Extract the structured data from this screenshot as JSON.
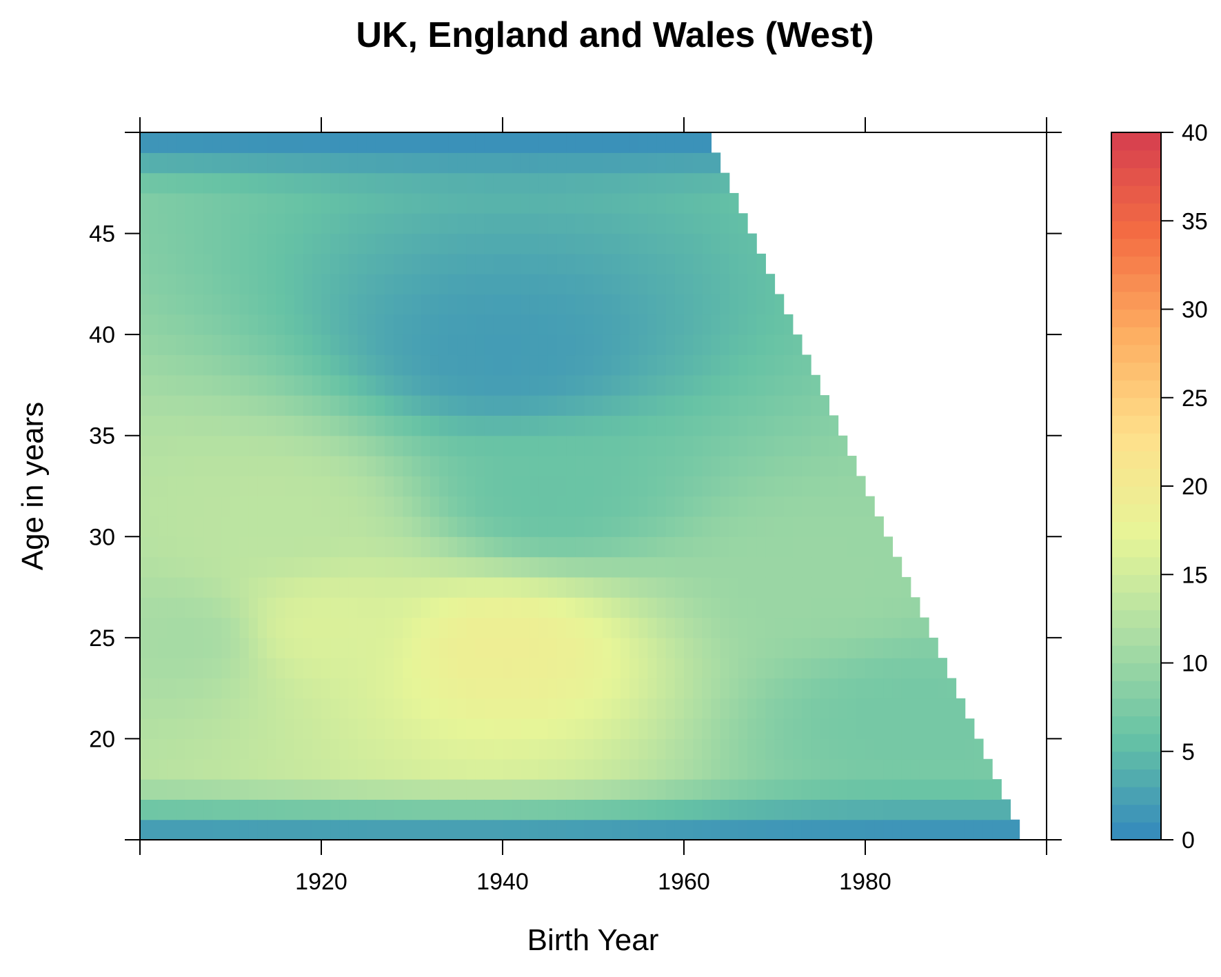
{
  "chart_data": {
    "type": "heatmap",
    "title": "UK, England and Wales (West)",
    "xlabel": "Birth Year",
    "ylabel": "Age in years",
    "xlim": [
      1900,
      2000
    ],
    "ylim": [
      15,
      50
    ],
    "x_ticks": [
      1920,
      1940,
      1960,
      1980
    ],
    "y_ticks": [
      20,
      25,
      30,
      35,
      40,
      45
    ],
    "colorbar": {
      "range": [
        0,
        40
      ],
      "ticks": [
        0,
        5,
        10,
        15,
        20,
        25,
        30,
        35,
        40
      ],
      "palette": [
        "#3288bd",
        "#66c2a5",
        "#abdda4",
        "#e6f598",
        "#fee08b",
        "#fdae61",
        "#f46d43",
        "#d53e4f"
      ]
    },
    "grid": false,
    "observed_region": "birth_year + age <= 2012",
    "features": [
      {
        "birth_year": 1940,
        "age": 24.5,
        "value": 19
      },
      {
        "birth_year": 1920,
        "age": 25.5,
        "value": 16
      },
      {
        "birth_year": 1915,
        "age": 31,
        "value": 13
      },
      {
        "birth_year": 1905,
        "age": 25,
        "value": 11
      },
      {
        "birth_year": 1945,
        "age": 32,
        "value": 6
      },
      {
        "birth_year": 1940,
        "age": 39,
        "value": 2
      },
      {
        "birth_year": 1975,
        "age": 28,
        "value": 10
      },
      {
        "birth_year": 1985,
        "age": 21,
        "value": 7
      }
    ]
  }
}
